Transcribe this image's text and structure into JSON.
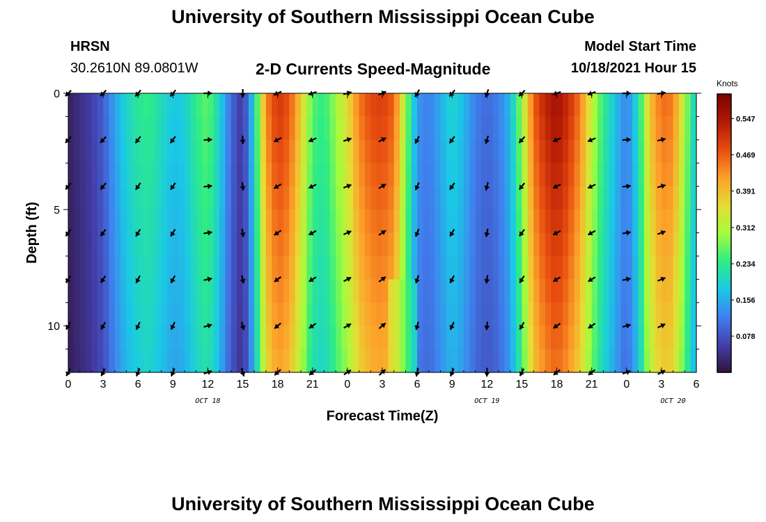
{
  "header": {
    "title": "University of Southern Mississippi Ocean Cube",
    "station": "HRSN",
    "coords": "30.2610N  89.0801W",
    "product": "2-D Currents Speed-Magnitude",
    "model_start_label": "Model Start Time",
    "model_start_value": "10/18/2021 Hour 15",
    "second_title": "University of Southern Mississippi Ocean Cube"
  },
  "chart_data": {
    "type": "heatmap",
    "title": "2-D Currents Speed-Magnitude",
    "xlabel": "Forecast Time(Z)",
    "ylabel": "Depth (ft)",
    "colorbar_label": "Knots",
    "colorbar_ticks": [
      "0.078",
      "0.156",
      "0.234",
      "0.312",
      "0.391",
      "0.469",
      "0.547"
    ],
    "colorbar_range": [
      0.0,
      0.6
    ],
    "x_hours": [
      0,
      54
    ],
    "x_tick_labels": [
      "0",
      "3",
      "6",
      "9",
      "12",
      "15",
      "18",
      "21",
      "0",
      "3",
      "6",
      "9",
      "12",
      "15",
      "18",
      "21",
      "0",
      "3",
      "6"
    ],
    "date_labels": [
      {
        "label": "OCT 18",
        "hour": 12
      },
      {
        "label": "OCT 19",
        "hour": 36
      },
      {
        "label": "OCT 20",
        "hour": 52
      }
    ],
    "y_range": [
      0,
      12
    ],
    "y_tick_labels": [
      "0",
      "5",
      "10"
    ],
    "y_ticks": [
      0,
      5,
      10
    ],
    "speed_profile": [
      {
        "hour": 0,
        "speed": 0.02
      },
      {
        "hour": 1,
        "speed": 0.04
      },
      {
        "hour": 2,
        "speed": 0.06
      },
      {
        "hour": 3,
        "speed": 0.09
      },
      {
        "hour": 4,
        "speed": 0.15
      },
      {
        "hour": 5,
        "speed": 0.2
      },
      {
        "hour": 6,
        "speed": 0.23
      },
      {
        "hour": 7,
        "speed": 0.24
      },
      {
        "hour": 8,
        "speed": 0.21
      },
      {
        "hour": 9,
        "speed": 0.18
      },
      {
        "hour": 10,
        "speed": 0.19
      },
      {
        "hour": 11,
        "speed": 0.24
      },
      {
        "hour": 12,
        "speed": 0.27
      },
      {
        "hour": 13,
        "speed": 0.2
      },
      {
        "hour": 14,
        "speed": 0.1
      },
      {
        "hour": 15,
        "speed": 0.05
      },
      {
        "hour": 16,
        "speed": 0.2
      },
      {
        "hour": 17,
        "speed": 0.44
      },
      {
        "hour": 18,
        "speed": 0.51
      },
      {
        "hour": 19,
        "speed": 0.48
      },
      {
        "hour": 20,
        "speed": 0.38
      },
      {
        "hour": 21,
        "speed": 0.26
      },
      {
        "hour": 22,
        "speed": 0.24
      },
      {
        "hour": 23,
        "speed": 0.3
      },
      {
        "hour": 24,
        "speed": 0.36
      },
      {
        "hour": 25,
        "speed": 0.45
      },
      {
        "hour": 26,
        "speed": 0.49
      },
      {
        "hour": 27,
        "speed": 0.5
      },
      {
        "hour": 28,
        "speed": 0.47
      },
      {
        "hour": 29,
        "speed": 0.3
      },
      {
        "hour": 30,
        "speed": 0.14
      },
      {
        "hour": 31,
        "speed": 0.12
      },
      {
        "hour": 32,
        "speed": 0.16
      },
      {
        "hour": 33,
        "speed": 0.2
      },
      {
        "hour": 34,
        "speed": 0.17
      },
      {
        "hour": 35,
        "speed": 0.12
      },
      {
        "hour": 36,
        "speed": 0.1
      },
      {
        "hour": 37,
        "speed": 0.12
      },
      {
        "hour": 38,
        "speed": 0.17
      },
      {
        "hour": 39,
        "speed": 0.3
      },
      {
        "hour": 40,
        "speed": 0.47
      },
      {
        "hour": 41,
        "speed": 0.53
      },
      {
        "hour": 42,
        "speed": 0.56
      },
      {
        "hour": 43,
        "speed": 0.52
      },
      {
        "hour": 44,
        "speed": 0.45
      },
      {
        "hour": 45,
        "speed": 0.33
      },
      {
        "hour": 46,
        "speed": 0.24
      },
      {
        "hour": 47,
        "speed": 0.18
      },
      {
        "hour": 48,
        "speed": 0.12
      },
      {
        "hour": 49,
        "speed": 0.21
      },
      {
        "hour": 50,
        "speed": 0.39
      },
      {
        "hour": 51,
        "speed": 0.46
      },
      {
        "hour": 52,
        "speed": 0.45
      },
      {
        "hour": 53,
        "speed": 0.31
      },
      {
        "hour": 54,
        "speed": 0.18
      }
    ],
    "arrow_depths": [
      0,
      2,
      4,
      6,
      8,
      10,
      12
    ],
    "arrow_columns": [
      {
        "hour": 0,
        "angle": 225
      },
      {
        "hour": 3,
        "angle": 225
      },
      {
        "hour": 6,
        "angle": 230
      },
      {
        "hour": 9,
        "angle": 230
      },
      {
        "hour": 12,
        "angle": 0
      },
      {
        "hour": 15,
        "angle": 270
      },
      {
        "hour": 18,
        "angle": 205
      },
      {
        "hour": 21,
        "angle": 200
      },
      {
        "hour": 24,
        "angle": 15
      },
      {
        "hour": 27,
        "angle": 25
      },
      {
        "hour": 30,
        "angle": 240
      },
      {
        "hour": 33,
        "angle": 230
      },
      {
        "hour": 36,
        "angle": 250
      },
      {
        "hour": 39,
        "angle": 225
      },
      {
        "hour": 42,
        "angle": 200
      },
      {
        "hour": 45,
        "angle": 200
      },
      {
        "hour": 48,
        "angle": 0
      },
      {
        "hour": 51,
        "angle": 10
      }
    ]
  }
}
